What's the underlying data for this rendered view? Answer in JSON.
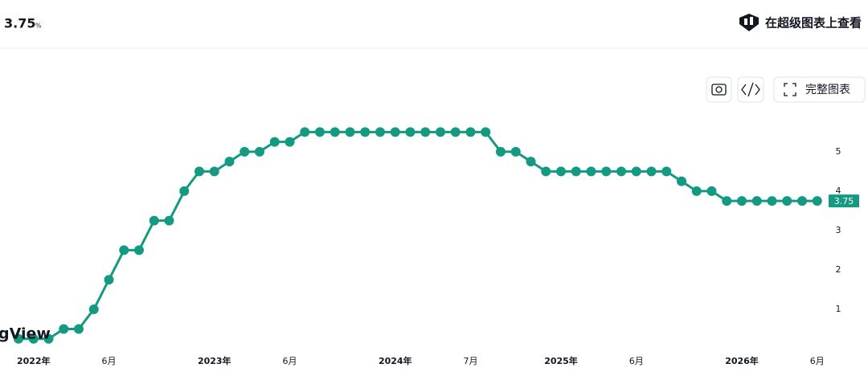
{
  "header": {
    "unit": "%",
    "link": "在超级图表上查看",
    "full_chart": "完整图表",
    "watermark": "gView"
  },
  "chart_data": {
    "type": "line",
    "color": "#139a80",
    "categories": [
      null,
      "2022年",
      null,
      null,
      null,
      null,
      "6月",
      null,
      null,
      null,
      null,
      null,
      null,
      "2023年",
      null,
      null,
      null,
      null,
      "6月",
      null,
      null,
      null,
      null,
      null,
      null,
      "2024年",
      null,
      null,
      null,
      null,
      "7月",
      null,
      null,
      null,
      null,
      null,
      "2025年",
      null,
      null,
      null,
      null,
      "6月",
      null,
      null,
      null,
      null,
      null,
      null,
      "2026年",
      null,
      null,
      null,
      null,
      "6月"
    ],
    "values": [
      0.25,
      0.25,
      0.25,
      0.5,
      0.5,
      1.0,
      1.75,
      2.5,
      2.5,
      3.25,
      3.25,
      4.0,
      4.5,
      4.5,
      4.75,
      5.0,
      5.0,
      5.25,
      5.25,
      5.5,
      5.5,
      5.5,
      5.5,
      5.5,
      5.5,
      5.5,
      5.5,
      5.5,
      5.5,
      5.5,
      5.5,
      5.5,
      5.0,
      5.0,
      4.75,
      4.5,
      4.5,
      4.5,
      4.5,
      4.5,
      4.5,
      4.5,
      4.5,
      4.5,
      4.25,
      4.0,
      4.0,
      3.75,
      3.75,
      3.75,
      3.75,
      3.75,
      3.75,
      3.75
    ],
    "ylim": [
      0,
      6.2
    ],
    "yticks": [
      1,
      2,
      3,
      4,
      5
    ],
    "grid": false
  }
}
